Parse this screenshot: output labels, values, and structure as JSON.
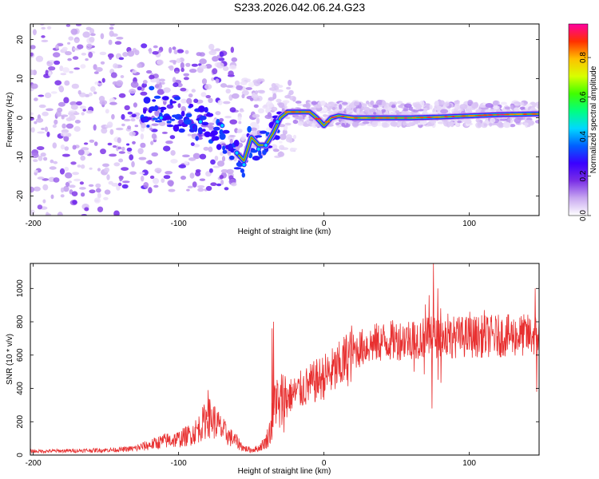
{
  "title": "S233.2026.042.06.24.G23",
  "chart_data": [
    {
      "type": "heatmap",
      "name": "spectrogram",
      "xlabel": "Height of straight line (km)",
      "ylabel": "Frequency (Hz)",
      "xlim": [
        -202,
        148
      ],
      "ylim": [
        -25,
        24
      ],
      "xticks": [
        -200,
        -100,
        0,
        100
      ],
      "yticks": [
        20,
        10,
        0,
        -10,
        -20
      ],
      "ridge": [
        [
          -120,
          4
        ],
        [
          -110,
          2
        ],
        [
          -100,
          1
        ],
        [
          -90,
          -1
        ],
        [
          -80,
          -2
        ],
        [
          -70,
          -5
        ],
        [
          -60,
          -9
        ],
        [
          -55,
          -11
        ],
        [
          -50,
          -5
        ],
        [
          -45,
          -7
        ],
        [
          -40,
          -7
        ],
        [
          -35,
          -4
        ],
        [
          -30,
          0
        ],
        [
          -25,
          1.5
        ],
        [
          -20,
          1.5
        ],
        [
          -10,
          1.5
        ],
        [
          -5,
          0
        ],
        [
          0,
          -2
        ],
        [
          5,
          0
        ],
        [
          10,
          0.5
        ],
        [
          20,
          0
        ],
        [
          40,
          0
        ],
        [
          60,
          0
        ],
        [
          80,
          0.2
        ],
        [
          100,
          0.5
        ],
        [
          120,
          0.8
        ],
        [
          148,
          1
        ]
      ]
    },
    {
      "type": "colorbar",
      "name": "amplitude-scale",
      "label": "Normalized spectral amplitude",
      "range": [
        0,
        0.97
      ],
      "ticks": [
        "0.0",
        "0.2",
        "0.4",
        "0.6",
        "0.8"
      ],
      "tick_values": [
        0,
        0.2,
        0.4,
        0.6,
        0.8
      ],
      "colors": [
        "#ffffff",
        "#c8a8f0",
        "#7a2ee6",
        "#3a00ff",
        "#0060ff",
        "#00d8ff",
        "#00ff80",
        "#40ff00",
        "#d8ff00",
        "#ffc000",
        "#ff3000",
        "#ff00a0"
      ]
    },
    {
      "type": "line",
      "name": "snr",
      "xlabel": "Height of straight line (km)",
      "ylabel": "SNR (10 * v/v)",
      "xlim": [
        -202,
        148
      ],
      "ylim": [
        0,
        1150
      ],
      "xticks": [
        -200,
        -100,
        0,
        100
      ],
      "yticks": [
        0,
        200,
        400,
        600,
        800,
        1000
      ],
      "series": [
        {
          "name": "SNR",
          "color": "#e83030",
          "envelope": [
            [
              -202,
              22
            ],
            [
              -180,
              25
            ],
            [
              -160,
              28
            ],
            [
              -140,
              32
            ],
            [
              -130,
              40
            ],
            [
              -120,
              60
            ],
            [
              -110,
              85
            ],
            [
              -100,
              95
            ],
            [
              -90,
              130
            ],
            [
              -85,
              170
            ],
            [
              -80,
              230
            ],
            [
              -75,
              200
            ],
            [
              -70,
              150
            ],
            [
              -65,
              110
            ],
            [
              -60,
              80
            ],
            [
              -55,
              40
            ],
            [
              -50,
              30
            ],
            [
              -45,
              40
            ],
            [
              -40,
              80
            ],
            [
              -36,
              170
            ],
            [
              -33,
              380
            ],
            [
              -31,
              250
            ],
            [
              -29,
              330
            ],
            [
              -25,
              350
            ],
            [
              -20,
              370
            ],
            [
              -10,
              420
            ],
            [
              0,
              470
            ],
            [
              10,
              520
            ],
            [
              20,
              620
            ],
            [
              30,
              660
            ],
            [
              40,
              680
            ],
            [
              50,
              690
            ],
            [
              60,
              700
            ],
            [
              70,
              705
            ],
            [
              80,
              710
            ],
            [
              100,
              710
            ],
            [
              120,
              715
            ],
            [
              148,
              720
            ]
          ],
          "spikes": [
            [
              -80,
              390
            ],
            [
              -35,
              800
            ],
            [
              -36,
              760
            ],
            [
              75,
              1150
            ],
            [
              72,
              960
            ],
            [
              78,
              1000
            ],
            [
              80,
              880
            ],
            [
              145,
              1000
            ],
            [
              146,
              380
            ],
            [
              74,
              280
            ],
            [
              100,
              860
            ],
            [
              110,
              870
            ]
          ]
        }
      ]
    }
  ]
}
